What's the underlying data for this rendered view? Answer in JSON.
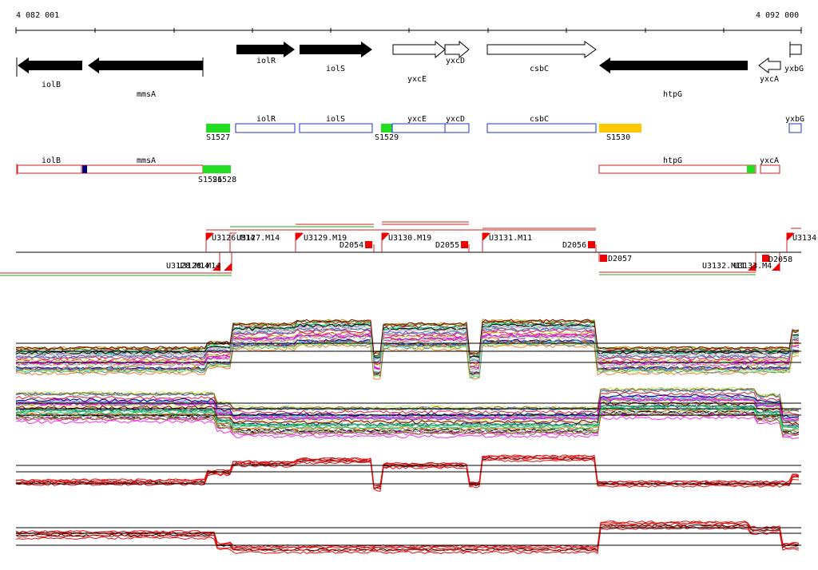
{
  "coords": {
    "start": "4 082 001",
    "end": "4 092 000"
  },
  "genes": [
    {
      "name": "iolB",
      "strand": "minus",
      "filled": true
    },
    {
      "name": "mmsA",
      "strand": "minus",
      "filled": true
    },
    {
      "name": "iolR",
      "strand": "plus",
      "filled": true
    },
    {
      "name": "iolS",
      "strand": "plus",
      "filled": true
    },
    {
      "name": "yxcE",
      "strand": "plus",
      "filled": false
    },
    {
      "name": "yxcD",
      "strand": "plus",
      "filled": false
    },
    {
      "name": "csbC",
      "strand": "plus",
      "filled": false
    },
    {
      "name": "htpG",
      "strand": "minus",
      "filled": true
    },
    {
      "name": "yxcA",
      "strand": "minus",
      "filled": false
    },
    {
      "name": "yxbG",
      "strand": "plus",
      "filled": false
    }
  ],
  "plus_features": {
    "genes": [
      "iolR",
      "iolS",
      "yxcE",
      "yxcD",
      "csbC",
      "yxbG"
    ],
    "signals": [
      "S1527",
      "S1529",
      "S1530"
    ]
  },
  "minus_features": {
    "genes": [
      "iolB",
      "mmsA",
      "htpG",
      "yxcA"
    ],
    "signals": [
      "S1526",
      "S1528"
    ]
  },
  "segments_upper": [
    "U3126.M14",
    "U3127.M14",
    "U3129.M19",
    "D2054",
    "U3130.M19",
    "D2055",
    "U3131.M11",
    "D2056",
    "U3134"
  ],
  "segments_lower": [
    "U3128.M14",
    "U3128.M14",
    "D2057",
    "U3132.M11",
    "U3133.M4",
    "D2058"
  ],
  "colors": {
    "gene_fill": "#000000",
    "plus_box": "#2233cc",
    "minus_box": "#cc2222",
    "signal_green": "#22dd22",
    "signal_orange": "#ffc800",
    "marker_navy": "#000080",
    "marker_red": "#ee0000"
  }
}
